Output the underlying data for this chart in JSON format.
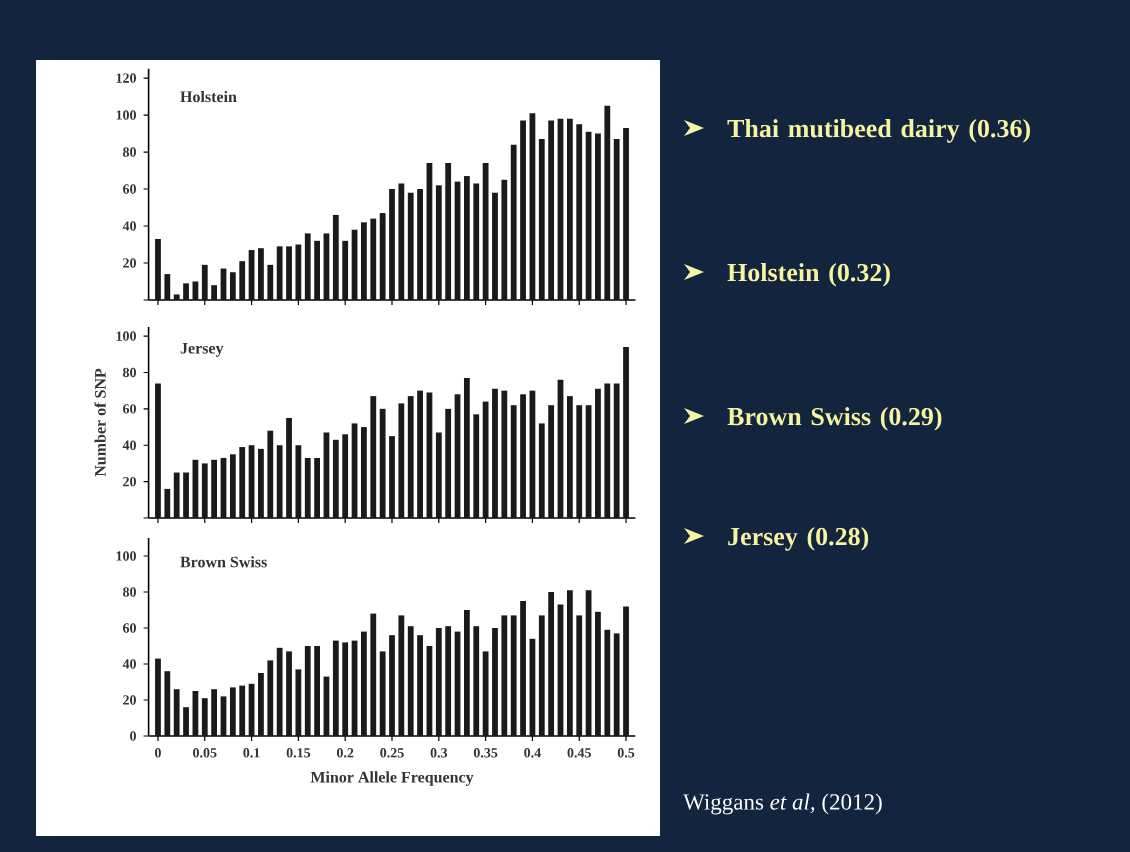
{
  "chart_data": [
    {
      "type": "bar",
      "title": "Holstein",
      "color": "#1a1a1a",
      "tick_labels": "y",
      "x": [
        0,
        0.01,
        0.02,
        0.03,
        0.04,
        0.05,
        0.06,
        0.07,
        0.08,
        0.09,
        0.1,
        0.11,
        0.12,
        0.13,
        0.14,
        0.15,
        0.16,
        0.17,
        0.18,
        0.19,
        0.2,
        0.21,
        0.22,
        0.23,
        0.24,
        0.25,
        0.26,
        0.27,
        0.28,
        0.29,
        0.3,
        0.31,
        0.32,
        0.33,
        0.34,
        0.35,
        0.36,
        0.37,
        0.38,
        0.39,
        0.4,
        0.41,
        0.42,
        0.43,
        0.44,
        0.45,
        0.46,
        0.47,
        0.48,
        0.49,
        0.5
      ],
      "values": [
        33,
        14,
        3,
        9,
        10,
        19,
        8,
        17,
        15,
        21,
        27,
        28,
        19,
        29,
        29,
        30,
        36,
        32,
        36,
        46,
        32,
        38,
        42,
        44,
        47,
        60,
        63,
        58,
        60,
        74,
        62,
        74,
        64,
        67,
        63,
        74,
        58,
        65,
        84,
        97,
        101,
        87,
        97,
        98,
        98,
        95,
        91,
        90,
        105,
        87,
        93
      ],
      "xlim": [
        -0.01,
        0.51
      ],
      "xticks": [
        0,
        0.05,
        0.1,
        0.15,
        0.2,
        0.25,
        0.3,
        0.35,
        0.4,
        0.45,
        0.5
      ],
      "ylim": [
        0,
        125
      ],
      "yticks": [
        {
          "value": 0,
          "label": null
        },
        20,
        40,
        60,
        80,
        100,
        120
      ]
    },
    {
      "type": "bar",
      "title": "Jersey",
      "ylabel": "Number of SNP",
      "color": "#1a1a1a",
      "tick_labels": "y",
      "x": [
        0,
        0.01,
        0.02,
        0.03,
        0.04,
        0.05,
        0.06,
        0.07,
        0.08,
        0.09,
        0.1,
        0.11,
        0.12,
        0.13,
        0.14,
        0.15,
        0.16,
        0.17,
        0.18,
        0.19,
        0.2,
        0.21,
        0.22,
        0.23,
        0.24,
        0.25,
        0.26,
        0.27,
        0.28,
        0.29,
        0.3,
        0.31,
        0.32,
        0.33,
        0.34,
        0.35,
        0.36,
        0.37,
        0.38,
        0.39,
        0.4,
        0.41,
        0.42,
        0.43,
        0.44,
        0.45,
        0.46,
        0.47,
        0.48,
        0.49,
        0.5
      ],
      "values": [
        74,
        16,
        25,
        25,
        32,
        30,
        32,
        33,
        35,
        39,
        40,
        38,
        48,
        40,
        55,
        40,
        33,
        33,
        47,
        43,
        46,
        52,
        50,
        67,
        60,
        45,
        63,
        67,
        70,
        69,
        47,
        60,
        68,
        77,
        57,
        64,
        71,
        70,
        62,
        68,
        70,
        52,
        62,
        76,
        67,
        62,
        62,
        71,
        74,
        74,
        94
      ],
      "xlim": [
        -0.01,
        0.51
      ],
      "xticks": [
        0,
        0.05,
        0.1,
        0.15,
        0.2,
        0.25,
        0.3,
        0.35,
        0.4,
        0.45,
        0.5
      ],
      "ylim": [
        0,
        105
      ],
      "yticks": [
        {
          "value": 0,
          "label": null
        },
        20,
        40,
        60,
        80,
        100
      ]
    },
    {
      "type": "bar",
      "title": "Brown Swiss",
      "xlabel": "Minor Allele Frequency",
      "color": "#1a1a1a",
      "x": [
        0,
        0.01,
        0.02,
        0.03,
        0.04,
        0.05,
        0.06,
        0.07,
        0.08,
        0.09,
        0.1,
        0.11,
        0.12,
        0.13,
        0.14,
        0.15,
        0.16,
        0.17,
        0.18,
        0.19,
        0.2,
        0.21,
        0.22,
        0.23,
        0.24,
        0.25,
        0.26,
        0.27,
        0.28,
        0.29,
        0.3,
        0.31,
        0.32,
        0.33,
        0.34,
        0.35,
        0.36,
        0.37,
        0.38,
        0.39,
        0.4,
        0.41,
        0.42,
        0.43,
        0.44,
        0.45,
        0.46,
        0.47,
        0.48,
        0.49,
        0.5
      ],
      "values": [
        43,
        36,
        26,
        16,
        25,
        21,
        26,
        22,
        27,
        28,
        29,
        35,
        42,
        49,
        47,
        37,
        50,
        50,
        33,
        53,
        52,
        53,
        58,
        68,
        47,
        56,
        67,
        61,
        56,
        50,
        60,
        61,
        58,
        70,
        61,
        47,
        60,
        67,
        67,
        75,
        54,
        67,
        80,
        73,
        81,
        67,
        81,
        69,
        59,
        57,
        72
      ],
      "xlim": [
        -0.01,
        0.51
      ],
      "xticks": [
        0,
        0.05,
        0.1,
        0.15,
        0.2,
        0.25,
        0.3,
        0.35,
        0.4,
        0.45,
        0.5
      ],
      "ylim": [
        0,
        110
      ],
      "yticks": [
        0,
        20,
        40,
        60,
        80,
        100
      ]
    },
    {
      "type": "other",
      "annotations": [
        "Thai mutibeed dairy (0.36)",
        "Holstein (0.32)",
        "Brown Swiss (0.29)",
        "Jersey (0.28)",
        "Wiggans *et al,* (2012)"
      ]
    }
  ]
}
